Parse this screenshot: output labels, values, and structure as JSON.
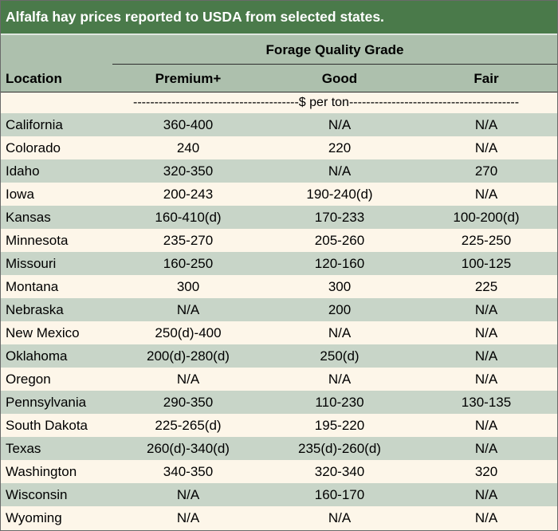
{
  "title": "Alfalfa hay prices reported to USDA from selected states.",
  "header": {
    "group_label": "Forage Quality Grade",
    "location_label": "Location",
    "columns": [
      "Premium+",
      "Good",
      "Fair"
    ]
  },
  "units": "---------------------------------------$ per ton----------------------------------------",
  "rows": [
    {
      "location": "California",
      "premium": "360-400",
      "good": "N/A",
      "fair": "N/A"
    },
    {
      "location": "Colorado",
      "premium": "240",
      "good": "220",
      "fair": "N/A"
    },
    {
      "location": "Idaho",
      "premium": "320-350",
      "good": "N/A",
      "fair": "270"
    },
    {
      "location": "Iowa",
      "premium": "200-243",
      "good": "190-240(d)",
      "fair": "N/A"
    },
    {
      "location": "Kansas",
      "premium": "160-410(d)",
      "good": "170-233",
      "fair": "100-200(d)"
    },
    {
      "location": "Minnesota",
      "premium": "235-270",
      "good": "205-260",
      "fair": "225-250"
    },
    {
      "location": "Missouri",
      "premium": "160-250",
      "good": "120-160",
      "fair": "100-125"
    },
    {
      "location": "Montana",
      "premium": "300",
      "good": "300",
      "fair": "225"
    },
    {
      "location": "Nebraska",
      "premium": "N/A",
      "good": "200",
      "fair": "N/A"
    },
    {
      "location": "New Mexico",
      "premium": "250(d)-400",
      "good": "N/A",
      "fair": "N/A"
    },
    {
      "location": "Oklahoma",
      "premium": "200(d)-280(d)",
      "good": "250(d)",
      "fair": "N/A"
    },
    {
      "location": "Oregon",
      "premium": "N/A",
      "good": "N/A",
      "fair": "N/A"
    },
    {
      "location": "Pennsylvania",
      "premium": "290-350",
      "good": "110-230",
      "fair": "130-135"
    },
    {
      "location": "South Dakota",
      "premium": "225-265(d)",
      "good": "195-220",
      "fair": "N/A"
    },
    {
      "location": "Texas",
      "premium": "260(d)-340(d)",
      "good": "235(d)-260(d)",
      "fair": "N/A"
    },
    {
      "location": "Washington",
      "premium": "340-350",
      "good": "320-340",
      "fair": "320"
    },
    {
      "location": "Wisconsin",
      "premium": "N/A",
      "good": "160-170",
      "fair": "N/A"
    },
    {
      "location": "Wyoming",
      "premium": "N/A",
      "good": "N/A",
      "fair": "N/A"
    }
  ],
  "colors": {
    "title_bg": "#4a7a4a",
    "header_bg": "#adc0ad",
    "alt_row_bg": "#c8d5c8",
    "row_bg": "#fdf6e9"
  }
}
